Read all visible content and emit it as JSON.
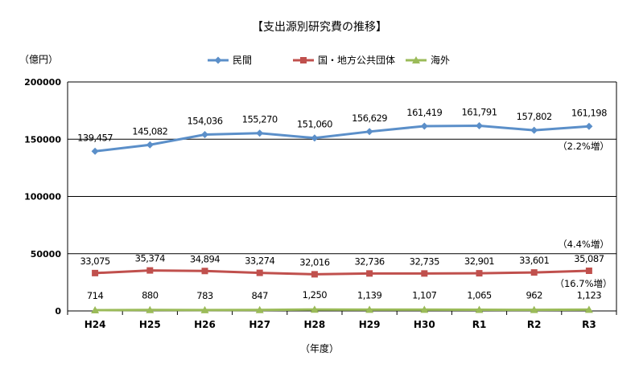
{
  "chart_data": {
    "type": "line",
    "title": "【支出源別研究費の推移】",
    "ylabel": "（億円）",
    "xlabel": "（年度）",
    "categories": [
      "H24",
      "H25",
      "H26",
      "H27",
      "H28",
      "H29",
      "H30",
      "R1",
      "R2",
      "R3"
    ],
    "ylim": [
      0,
      200000
    ],
    "yticks": [
      "200000",
      "150000",
      "100000",
      "50000",
      "0"
    ],
    "grid": true,
    "legend_position": "top",
    "series": [
      {
        "name": "民間",
        "color": "#5b8fc9",
        "marker": "diamond",
        "values": [
          139457,
          145082,
          154036,
          155270,
          151060,
          156629,
          161419,
          161791,
          157802,
          161198
        ],
        "labels": [
          "139,457",
          "145,082",
          "154,036",
          "155,270",
          "151,060",
          "156,629",
          "161,419",
          "161,791",
          "157,802",
          "161,198"
        ]
      },
      {
        "name": "国・地方公共団体",
        "color": "#c0504d",
        "marker": "square",
        "values": [
          33075,
          35374,
          34894,
          33274,
          32016,
          32736,
          32735,
          32901,
          33601,
          35087
        ],
        "labels": [
          "33,075",
          "35,374",
          "34,894",
          "33,274",
          "32,016",
          "32,736",
          "32,735",
          "32,901",
          "33,601",
          "35,087"
        ]
      },
      {
        "name": "海外",
        "color": "#9bbb59",
        "marker": "triangle",
        "values": [
          714,
          880,
          783,
          847,
          1250,
          1139,
          1107,
          1065,
          962,
          1123
        ],
        "labels": [
          "714",
          "880",
          "783",
          "847",
          "1,250",
          "1,139",
          "1,107",
          "1,065",
          "962",
          "1,123"
        ]
      }
    ],
    "annotations": [
      "（2.2%増）",
      "（4.4%増）",
      "（16.7%増）"
    ]
  }
}
